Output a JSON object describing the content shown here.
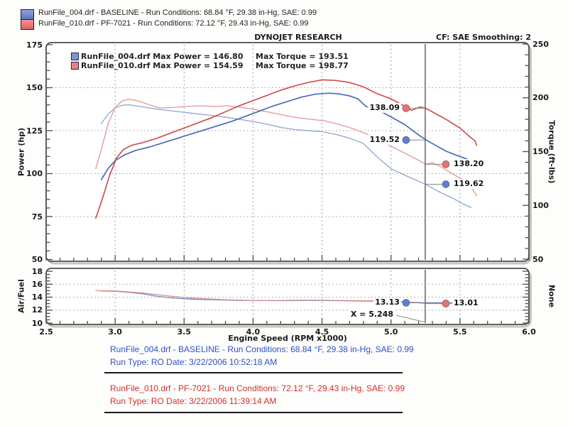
{
  "header": {
    "title": "DYNOJET RESEARCH",
    "cf_smoothing": "CF: SAE  Smoothing: 2",
    "runs": [
      {
        "text": "RunFile_004.drf - BASELINE  -  Run Conditions: 68.84 °F, 29.38 in-Hg, SAE: 0.99",
        "color": "#6f8cd0"
      },
      {
        "text": "RunFile_010.drf - PF-7021  -  Run Conditions: 72.12 °F, 29.43 in-Hg, SAE: 0.99",
        "color": "#ef8080"
      }
    ]
  },
  "footer": {
    "blocks": [
      {
        "line1": "RunFile_004.drf - BASELINE  -  Run Conditions: 68.84 °F, 29.38 in-Hg, SAE: 0.99",
        "line2": "Run Type: RO  Date: 3/22/2006 10:52:18 AM",
        "color": "#3050c8"
      },
      {
        "line1": "RunFile_010.drf - PF-7021  -  Run Conditions: 72.12 °F, 29.43 in-Hg, SAE: 0.99",
        "line2": "Run Type: RO  Date: 3/22/2006 11:39:14 AM",
        "color": "#d03030"
      }
    ]
  },
  "chart_data": [
    {
      "type": "line",
      "title": "DYNOJET RESEARCH",
      "x": {
        "label": "Engine Speed (RPM x1000)",
        "min": 2.5,
        "max": 6.0,
        "ticks": [
          2.5,
          3.0,
          3.5,
          4.0,
          4.5,
          5.0,
          5.5,
          6.0
        ],
        "minor_step": 0.1,
        "grid": [
          3.0,
          3.5,
          4.0,
          4.5,
          5.0,
          5.5
        ],
        "show_tick_labels": false
      },
      "left_axis": {
        "label": "Power (hp)",
        "min": 50,
        "max": 175,
        "ticks": [
          175,
          150,
          125,
          100,
          75,
          50
        ],
        "minor_step": 5,
        "grid": [
          150,
          125,
          100,
          75
        ]
      },
      "right_axis": {
        "label": "Torque (ft-lbs)",
        "min": 50,
        "max": 250,
        "ticks": [
          250,
          200,
          150,
          100,
          50
        ],
        "minor_step": 10
      },
      "legend": [
        {
          "swatch": "#7b96d8",
          "name": "RunFile_004.drf",
          "text": "RunFile_004.drf Max Power = 146.80",
          "text2": "Max Torque = 193.51"
        },
        {
          "swatch": "#f08080",
          "name": "RunFile_010.drf",
          "text": "RunFile_010.drf Max Power = 154.59",
          "text2": "Max Torque = 198.77"
        }
      ],
      "cursor": {
        "x": 5.248
      },
      "series": [
        {
          "name": "baseline-torque",
          "axis": "right",
          "color": "#97a9d6",
          "width": 1.4,
          "points": [
            [
              2.9,
              176
            ],
            [
              2.95,
              185
            ],
            [
              3.0,
              190.5
            ],
            [
              3.05,
              193
            ],
            [
              3.1,
              193.5
            ],
            [
              3.2,
              191.5
            ],
            [
              3.3,
              189.5
            ],
            [
              3.4,
              188
            ],
            [
              3.5,
              186.5
            ],
            [
              3.6,
              185
            ],
            [
              3.7,
              183.5
            ],
            [
              3.8,
              182
            ],
            [
              3.9,
              180
            ],
            [
              4.0,
              178
            ],
            [
              4.1,
              175.5
            ],
            [
              4.2,
              172.5
            ],
            [
              4.3,
              170.5
            ],
            [
              4.4,
              169.5
            ],
            [
              4.5,
              168.5
            ],
            [
              4.6,
              166
            ],
            [
              4.7,
              162.5
            ],
            [
              4.8,
              157.5
            ],
            [
              4.9,
              145
            ],
            [
              5.0,
              134
            ],
            [
              5.1,
              128
            ],
            [
              5.18,
              123.5
            ],
            [
              5.25,
              119.6
            ],
            [
              5.35,
              112.5
            ],
            [
              5.45,
              106.5
            ],
            [
              5.52,
              101.5
            ],
            [
              5.58,
              98
            ]
          ]
        },
        {
          "name": "pf7021-torque",
          "axis": "right",
          "color": "#e49c9c",
          "width": 1.4,
          "points": [
            [
              2.86,
              134
            ],
            [
              2.9,
              152
            ],
            [
              2.95,
              176
            ],
            [
              3.0,
              191
            ],
            [
              3.05,
              197
            ],
            [
              3.1,
              198.8
            ],
            [
              3.17,
              197
            ],
            [
              3.25,
              193.5
            ],
            [
              3.32,
              190.5
            ],
            [
              3.42,
              191
            ],
            [
              3.52,
              192
            ],
            [
              3.62,
              192.5
            ],
            [
              3.72,
              192
            ],
            [
              3.82,
              192.5
            ],
            [
              3.92,
              191
            ],
            [
              4.02,
              189
            ],
            [
              4.12,
              186.5
            ],
            [
              4.22,
              184
            ],
            [
              4.32,
              181.5
            ],
            [
              4.42,
              180
            ],
            [
              4.52,
              178.5
            ],
            [
              4.62,
              175.5
            ],
            [
              4.72,
              171.5
            ],
            [
              4.82,
              166.5
            ],
            [
              4.92,
              160
            ],
            [
              5.0,
              155
            ],
            [
              5.1,
              148.5
            ],
            [
              5.17,
              144
            ],
            [
              5.22,
              140.5
            ],
            [
              5.25,
              138.3
            ],
            [
              5.3,
              139.5
            ],
            [
              5.36,
              136
            ],
            [
              5.45,
              129
            ],
            [
              5.52,
              124
            ],
            [
              5.58,
              117
            ],
            [
              5.61,
              111.5
            ],
            [
              5.62,
              109
            ]
          ]
        },
        {
          "name": "baseline-power",
          "axis": "left",
          "color": "#4a6ab5",
          "width": 1.7,
          "points": [
            [
              2.9,
              96.5
            ],
            [
              2.95,
              103
            ],
            [
              3.0,
              107.5
            ],
            [
              3.07,
              111
            ],
            [
              3.15,
              113.5
            ],
            [
              3.25,
              115.5
            ],
            [
              3.35,
              118
            ],
            [
              3.45,
              120.5
            ],
            [
              3.55,
              123
            ],
            [
              3.65,
              125.5
            ],
            [
              3.75,
              128
            ],
            [
              3.85,
              130.5
            ],
            [
              3.95,
              133.5
            ],
            [
              4.05,
              136.5
            ],
            [
              4.15,
              139.5
            ],
            [
              4.25,
              142
            ],
            [
              4.35,
              144.5
            ],
            [
              4.45,
              146.2
            ],
            [
              4.55,
              146.8
            ],
            [
              4.62,
              146.4
            ],
            [
              4.7,
              145.2
            ],
            [
              4.76,
              143.5
            ],
            [
              4.82,
              139
            ],
            [
              4.87,
              138
            ],
            [
              4.93,
              136
            ],
            [
              5.0,
              133
            ],
            [
              5.1,
              128.5
            ],
            [
              5.2,
              122.5
            ],
            [
              5.25,
              119.8
            ],
            [
              5.3,
              117.5
            ],
            [
              5.4,
              113
            ],
            [
              5.48,
              110.5
            ],
            [
              5.55,
              108.5
            ],
            [
              5.57,
              106.5
            ]
          ]
        },
        {
          "name": "pf7021-power",
          "axis": "left",
          "color": "#cf5050",
          "width": 1.7,
          "points": [
            [
              2.86,
              74
            ],
            [
              2.91,
              86
            ],
            [
              2.96,
              99
            ],
            [
              3.01,
              109
            ],
            [
              3.06,
              114
            ],
            [
              3.12,
              116.5
            ],
            [
              3.2,
              118
            ],
            [
              3.3,
              120.5
            ],
            [
              3.4,
              123.5
            ],
            [
              3.5,
              126.5
            ],
            [
              3.6,
              129.5
            ],
            [
              3.7,
              132.5
            ],
            [
              3.8,
              136
            ],
            [
              3.9,
              139.5
            ],
            [
              4.0,
              142.5
            ],
            [
              4.1,
              145.5
            ],
            [
              4.2,
              148.5
            ],
            [
              4.3,
              151
            ],
            [
              4.4,
              153
            ],
            [
              4.5,
              154.6
            ],
            [
              4.6,
              154.2
            ],
            [
              4.7,
              153
            ],
            [
              4.8,
              150.5
            ],
            [
              4.9,
              146.5
            ],
            [
              5.0,
              143.5
            ],
            [
              5.08,
              140
            ],
            [
              5.15,
              136.8
            ],
            [
              5.21,
              138.8
            ],
            [
              5.25,
              138.1
            ],
            [
              5.32,
              135
            ],
            [
              5.4,
              131.5
            ],
            [
              5.5,
              126.5
            ],
            [
              5.57,
              121.5
            ],
            [
              5.61,
              119
            ],
            [
              5.62,
              116.5
            ]
          ]
        }
      ],
      "callouts": [
        {
          "label": "138.09",
          "axis": "left",
          "value": 138.09,
          "side": "left",
          "dot_color": "#ee7070"
        },
        {
          "label": "119.52",
          "axis": "left",
          "value": 119.52,
          "side": "left",
          "dot_color": "#5b7fd8"
        },
        {
          "label": "138.20",
          "axis": "right",
          "value": 138.2,
          "side": "right",
          "dot_color": "#ee7070"
        },
        {
          "label": "119.62",
          "axis": "right",
          "value": 119.62,
          "side": "right",
          "dot_color": "#5b7fd8"
        }
      ]
    },
    {
      "type": "line",
      "x": {
        "label": "Engine Speed (RPM x1000)",
        "min": 2.5,
        "max": 6.0,
        "ticks": [
          2.5,
          3.0,
          3.5,
          4.0,
          4.5,
          5.0,
          5.5,
          6.0
        ],
        "minor_step": 0.1,
        "grid": [
          3.0,
          3.5,
          4.0,
          4.5,
          5.0,
          5.5
        ],
        "show_tick_labels": true
      },
      "left_axis": {
        "label": "Air/Fuel",
        "min": 10,
        "max": 18,
        "ticks": [
          18,
          16,
          14,
          12,
          10
        ],
        "minor_step": 0.5,
        "grid": [
          16,
          14,
          12
        ]
      },
      "right_axis": {
        "label": "None",
        "ticks": []
      },
      "cursor": {
        "x": 5.248,
        "label": "X = 5.248"
      },
      "series": [
        {
          "name": "baseline-airfuel",
          "axis": "left",
          "color": "#7288c0",
          "width": 1.3,
          "points": [
            [
              2.9,
              14.95
            ],
            [
              3.0,
              14.9
            ],
            [
              3.1,
              14.75
            ],
            [
              3.2,
              14.5
            ],
            [
              3.3,
              14.15
            ],
            [
              3.4,
              13.9
            ],
            [
              3.5,
              13.75
            ],
            [
              3.6,
              13.65
            ],
            [
              3.7,
              13.6
            ],
            [
              3.8,
              13.55
            ],
            [
              3.9,
              13.5
            ],
            [
              4.0,
              13.5
            ],
            [
              4.2,
              13.45
            ],
            [
              4.4,
              13.5
            ],
            [
              4.6,
              13.45
            ],
            [
              4.8,
              13.4
            ],
            [
              5.0,
              13.35
            ],
            [
              5.1,
              13.25
            ],
            [
              5.25,
              13.13
            ],
            [
              5.4,
              13.15
            ],
            [
              5.55,
              13.1
            ]
          ]
        },
        {
          "name": "pf7021-airfuel",
          "axis": "left",
          "color": "#d98f8f",
          "width": 1.3,
          "points": [
            [
              2.86,
              15.0
            ],
            [
              3.0,
              14.95
            ],
            [
              3.1,
              14.8
            ],
            [
              3.2,
              14.65
            ],
            [
              3.3,
              14.4
            ],
            [
              3.4,
              14.15
            ],
            [
              3.5,
              13.95
            ],
            [
              3.6,
              13.8
            ],
            [
              3.7,
              13.7
            ],
            [
              3.8,
              13.6
            ],
            [
              3.9,
              13.55
            ],
            [
              4.0,
              13.5
            ],
            [
              4.2,
              13.5
            ],
            [
              4.4,
              13.55
            ],
            [
              4.6,
              13.5
            ],
            [
              4.8,
              13.45
            ],
            [
              5.0,
              13.4
            ],
            [
              5.1,
              13.3
            ],
            [
              5.25,
              13.01
            ],
            [
              5.45,
              13.0
            ],
            [
              5.6,
              13.05
            ]
          ]
        }
      ],
      "callouts": [
        {
          "label": "13.13",
          "axis": "left",
          "value": 13.13,
          "side": "left",
          "dot_color": "#5b7fd8"
        },
        {
          "label": "13.01",
          "axis": "left",
          "value": 13.01,
          "side": "right",
          "dot_color": "#ee7070"
        }
      ]
    }
  ]
}
